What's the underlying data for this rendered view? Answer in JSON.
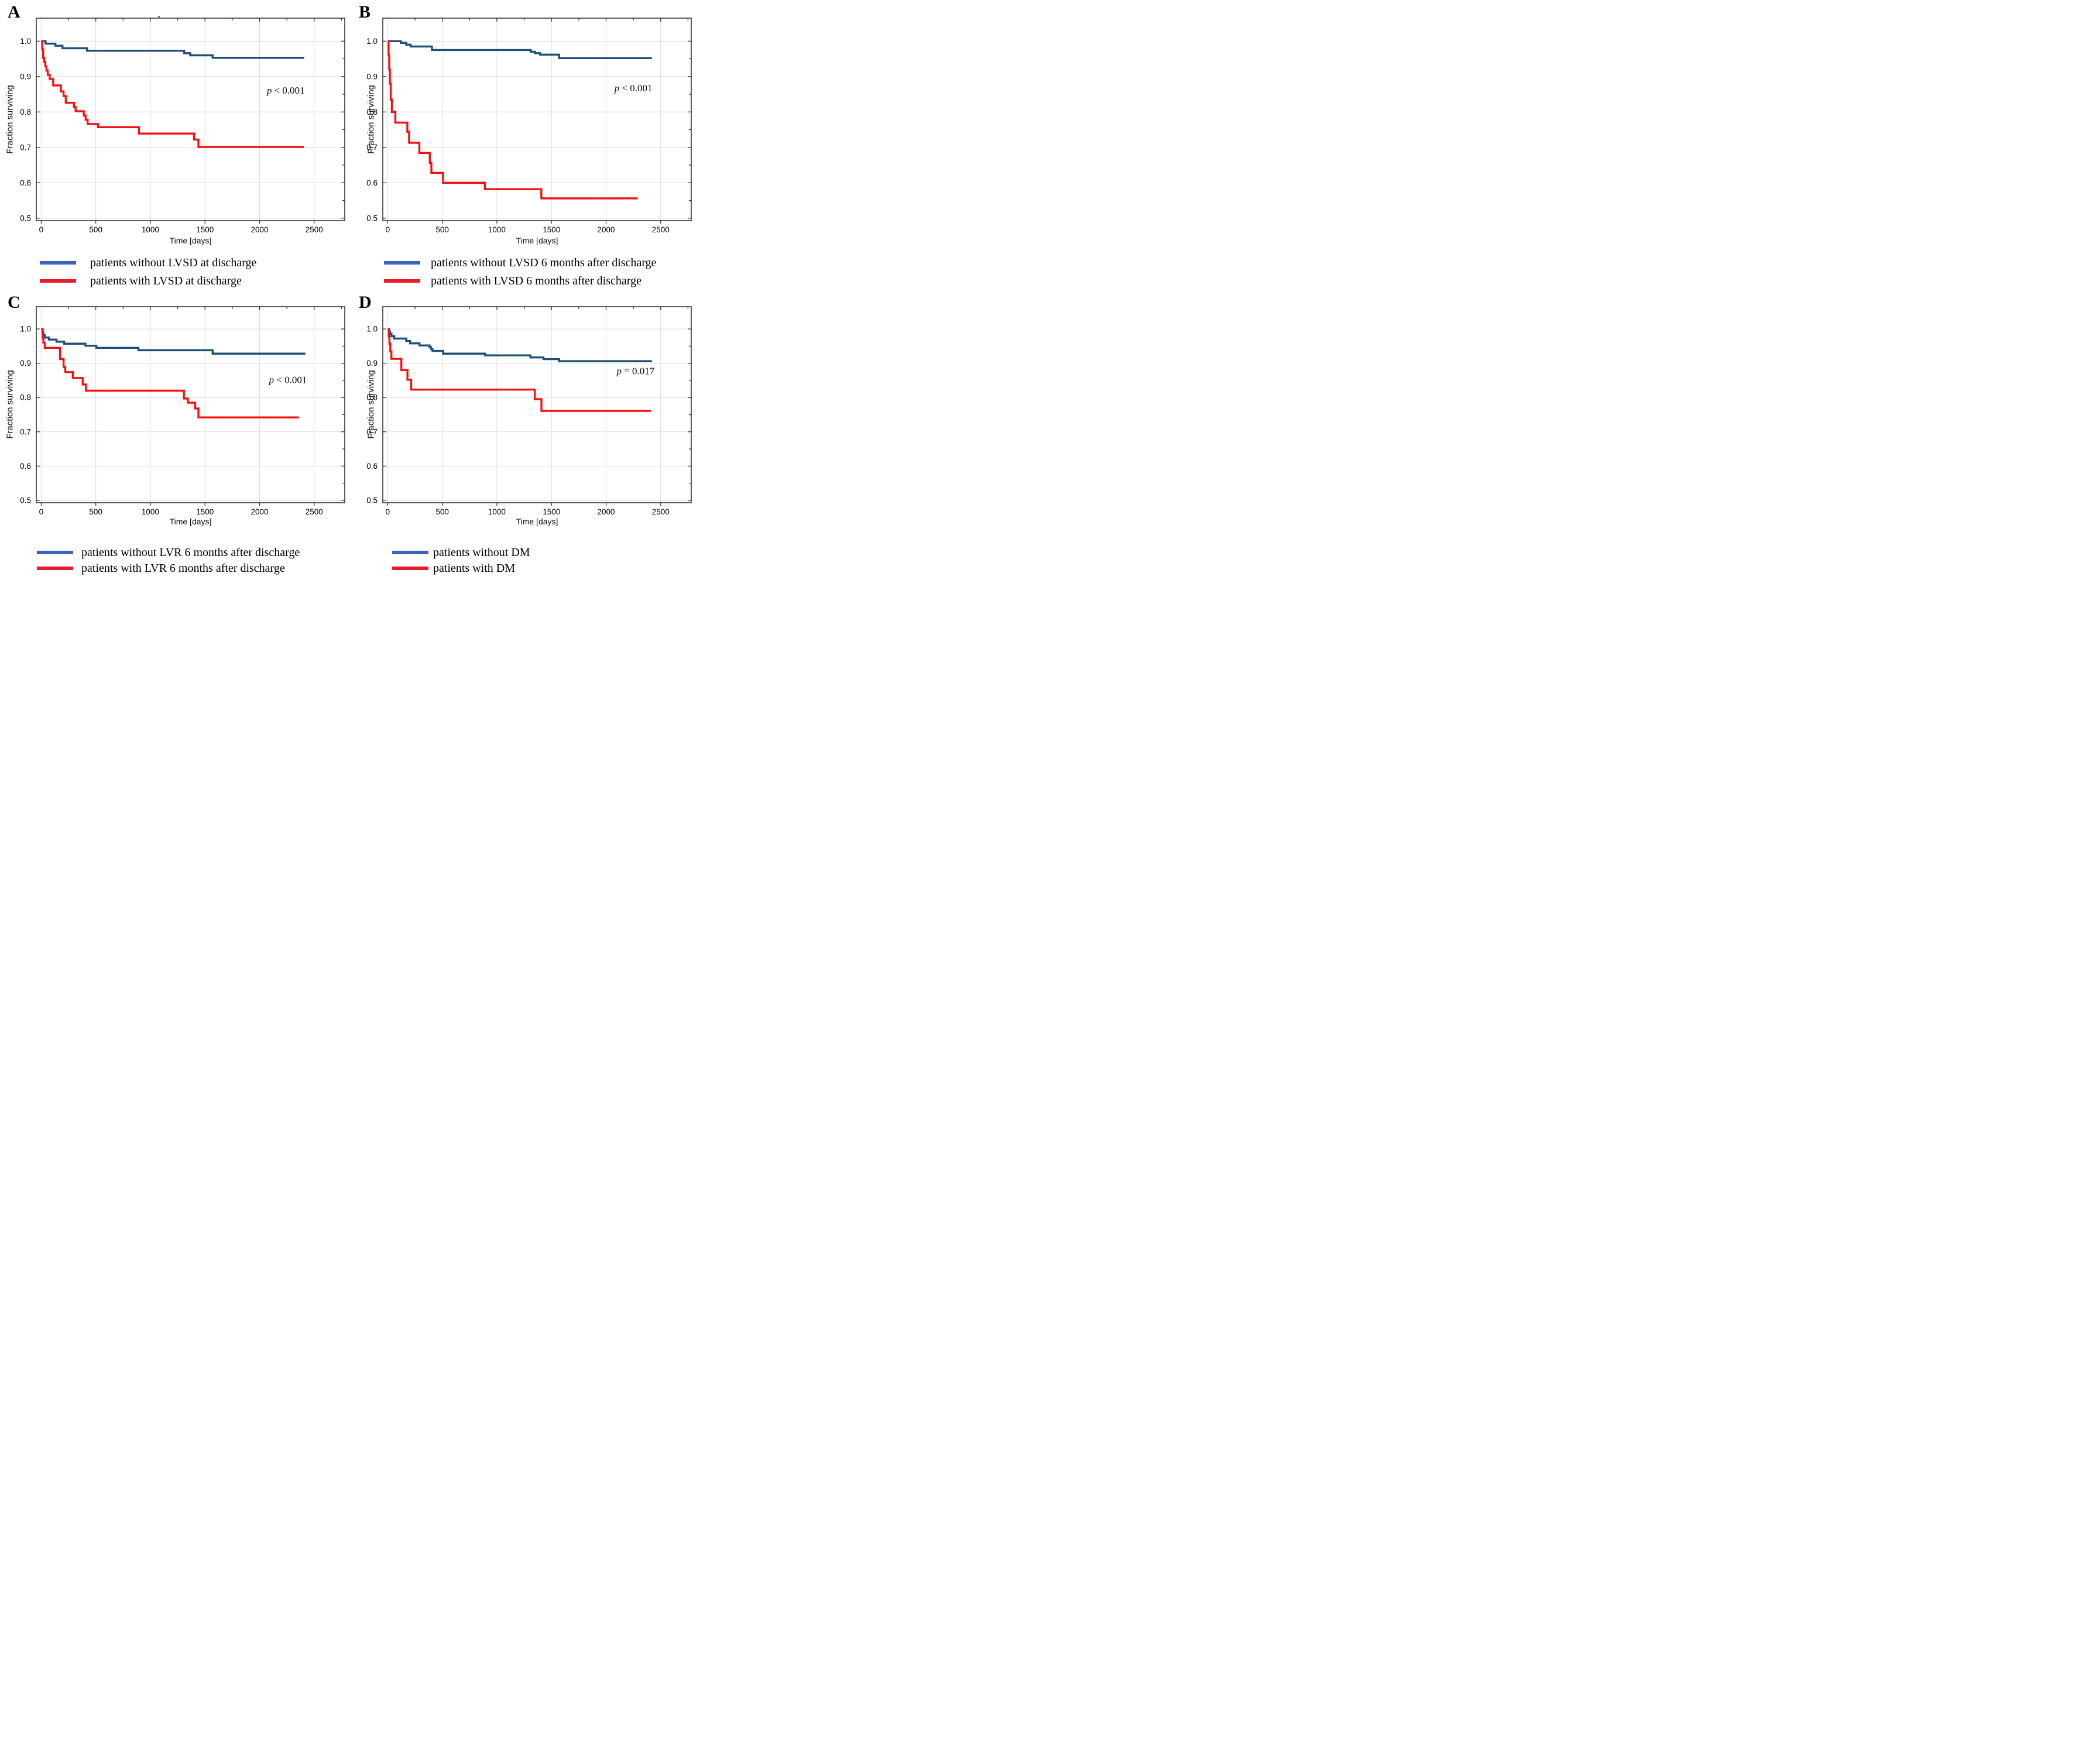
{
  "figure": {
    "kind": "kaplan-meier-survival-figure",
    "background": "#ffffff"
  },
  "colors": {
    "curve_blue": "#1f4e7b",
    "curve_red": "#f50f0f",
    "legend_blue": "#3c63c3",
    "legend_red": "#e91c2b",
    "grid": "#dcdcdc",
    "frame": "#2a2a2a",
    "text": "#000000"
  },
  "axes": {
    "xlabel": "Time [days]",
    "ylabel": "Fraction surviving",
    "x_ticks": [
      0,
      500,
      1000,
      1500,
      2000,
      2500
    ],
    "y_ticks": [
      1.0,
      0.9,
      0.8,
      0.7,
      0.6,
      0.5
    ],
    "x_minor_step": 250,
    "y_minor_ticks": [
      0.95,
      0.85,
      0.75,
      0.65,
      0.55
    ],
    "x_domain": [
      -45,
      2780
    ],
    "y_domain": [
      0.493,
      1.065
    ],
    "grid": "on"
  },
  "chart_data": [
    {
      "type": "line",
      "panel_label": "A",
      "p_text": "p < 0.001",
      "p_sym": "p",
      "p_rest": " < 0.001",
      "p_pos": {
        "x": 2240,
        "y": 0.852
      },
      "legend": [
        {
          "label": "patients without LVSD at discharge",
          "color": "blue"
        },
        {
          "label": "patients with LVSD at discharge",
          "color": "red"
        }
      ],
      "series": [
        {
          "name": "patients without LVSD at discharge",
          "color": "blue",
          "end_x": 2410,
          "points": [
            [
              0,
              1.0
            ],
            [
              40,
              0.993
            ],
            [
              130,
              0.987
            ],
            [
              195,
              0.98
            ],
            [
              420,
              0.973
            ],
            [
              1310,
              0.966
            ],
            [
              1365,
              0.96
            ],
            [
              1570,
              0.953
            ]
          ]
        },
        {
          "name": "patients with LVSD at discharge",
          "color": "red",
          "end_x": 2405,
          "points": [
            [
              0,
              1.0
            ],
            [
              10,
              0.977
            ],
            [
              18,
              0.953
            ],
            [
              28,
              0.941
            ],
            [
              38,
              0.929
            ],
            [
              48,
              0.917
            ],
            [
              60,
              0.905
            ],
            [
              78,
              0.893
            ],
            [
              110,
              0.875
            ],
            [
              180,
              0.858
            ],
            [
              205,
              0.845
            ],
            [
              225,
              0.826
            ],
            [
              300,
              0.814
            ],
            [
              315,
              0.802
            ],
            [
              390,
              0.79
            ],
            [
              407,
              0.778
            ],
            [
              425,
              0.766
            ],
            [
              520,
              0.757
            ],
            [
              895,
              0.739
            ],
            [
              1400,
              0.722
            ],
            [
              1440,
              0.701
            ]
          ]
        }
      ]
    },
    {
      "type": "line",
      "panel_label": "B",
      "p_text": "p < 0.001",
      "p_sym": "p",
      "p_rest": " < 0.001",
      "p_pos": {
        "x": 2250,
        "y": 0.858
      },
      "legend": [
        {
          "label": "patients without LVSD 6 months after discharge",
          "color": "blue"
        },
        {
          "label": "patients with LVSD 6 months after discharge",
          "color": "red"
        }
      ],
      "series": [
        {
          "name": "patients without LVSD 6 months after discharge",
          "color": "blue",
          "end_x": 2420,
          "points": [
            [
              0,
              1.0
            ],
            [
              120,
              0.995
            ],
            [
              170,
              0.99
            ],
            [
              210,
              0.985
            ],
            [
              405,
              0.975
            ],
            [
              1310,
              0.97
            ],
            [
              1350,
              0.966
            ],
            [
              1395,
              0.962
            ],
            [
              1570,
              0.952
            ]
          ]
        },
        {
          "name": "patients with LVSD 6 months after discharge",
          "color": "red",
          "end_x": 2290,
          "points": [
            [
              0,
              1.0
            ],
            [
              8,
              0.96
            ],
            [
              14,
              0.92
            ],
            [
              20,
              0.88
            ],
            [
              28,
              0.835
            ],
            [
              38,
              0.8
            ],
            [
              70,
              0.77
            ],
            [
              180,
              0.744
            ],
            [
              196,
              0.713
            ],
            [
              290,
              0.684
            ],
            [
              385,
              0.656
            ],
            [
              400,
              0.628
            ],
            [
              507,
              0.6
            ],
            [
              890,
              0.582
            ],
            [
              1407,
              0.556
            ]
          ]
        }
      ]
    },
    {
      "type": "line",
      "panel_label": "C",
      "p_text": "p < 0.001",
      "p_sym": "p",
      "p_rest": " < 0.001",
      "p_pos": {
        "x": 2260,
        "y": 0.842
      },
      "legend": [
        {
          "label": "patients without LVR 6 months after discharge",
          "color": "blue"
        },
        {
          "label": "patients with LVR 6 months after discharge",
          "color": "red"
        }
      ],
      "series": [
        {
          "name": "patients without LVR 6 months after discharge",
          "color": "blue",
          "end_x": 2420,
          "points": [
            [
              0,
              1.0
            ],
            [
              12,
              0.99
            ],
            [
              20,
              0.982
            ],
            [
              33,
              0.975
            ],
            [
              70,
              0.969
            ],
            [
              140,
              0.963
            ],
            [
              210,
              0.957
            ],
            [
              405,
              0.951
            ],
            [
              505,
              0.945
            ],
            [
              890,
              0.938
            ],
            [
              1570,
              0.928
            ]
          ]
        },
        {
          "name": "patients with LVR 6 months after discharge",
          "color": "red",
          "end_x": 2360,
          "points": [
            [
              8,
              1.0
            ],
            [
              14,
              0.973
            ],
            [
              20,
              0.96
            ],
            [
              33,
              0.945
            ],
            [
              172,
              0.912
            ],
            [
              205,
              0.889
            ],
            [
              220,
              0.874
            ],
            [
              290,
              0.857
            ],
            [
              380,
              0.838
            ],
            [
              410,
              0.82
            ],
            [
              1307,
              0.797
            ],
            [
              1343,
              0.785
            ],
            [
              1410,
              0.768
            ],
            [
              1440,
              0.742
            ]
          ]
        }
      ]
    },
    {
      "type": "line",
      "panel_label": "D",
      "p_text": "p = 0.017",
      "p_sym": "p",
      "p_rest": " = 0.017",
      "p_pos": {
        "x": 2270,
        "y": 0.868
      },
      "legend": [
        {
          "label": "patients without DM",
          "color": "blue"
        },
        {
          "label": "patients with DM",
          "color": "red"
        }
      ],
      "series": [
        {
          "name": "patients without DM",
          "color": "blue",
          "end_x": 2420,
          "points": [
            [
              0,
              1.0
            ],
            [
              12,
              0.993
            ],
            [
              22,
              0.986
            ],
            [
              35,
              0.979
            ],
            [
              60,
              0.972
            ],
            [
              170,
              0.965
            ],
            [
              205,
              0.958
            ],
            [
              291,
              0.952
            ],
            [
              383,
              0.948
            ],
            [
              395,
              0.942
            ],
            [
              410,
              0.936
            ],
            [
              508,
              0.928
            ],
            [
              892,
              0.923
            ],
            [
              1307,
              0.917
            ],
            [
              1426,
              0.912
            ],
            [
              1569,
              0.906
            ]
          ]
        },
        {
          "name": "patients with DM",
          "color": "red",
          "end_x": 2410,
          "points": [
            [
              0,
              1.0
            ],
            [
              10,
              0.978
            ],
            [
              16,
              0.957
            ],
            [
              24,
              0.935
            ],
            [
              34,
              0.913
            ],
            [
              125,
              0.88
            ],
            [
              181,
              0.852
            ],
            [
              215,
              0.823
            ],
            [
              1347,
              0.795
            ],
            [
              1408,
              0.761
            ]
          ]
        }
      ]
    }
  ]
}
